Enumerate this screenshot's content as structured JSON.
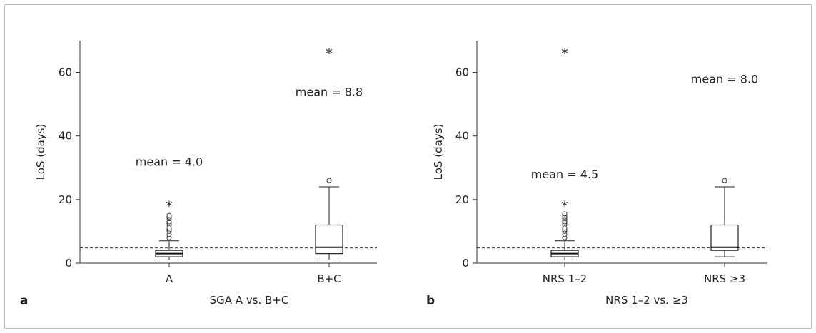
{
  "chart_data": [
    {
      "type": "box",
      "panel_label": "a",
      "xlabel": "SGA A vs. B+C",
      "ylabel": "LoS (days)",
      "ylim": [
        0,
        70
      ],
      "yticks": [
        "0",
        "20",
        "40",
        "60"
      ],
      "yticks_values": [
        0,
        20,
        40,
        60
      ],
      "reference_line": 4.8,
      "categories": [
        "A",
        "B+C"
      ],
      "boxes": [
        {
          "category": "A",
          "whisker_low": 1,
          "q1": 2,
          "median": 3,
          "q3": 4,
          "whisker_high": 7,
          "outliers": [
            8,
            9,
            10,
            10.5,
            11,
            12,
            12.5,
            13,
            14,
            14.5,
            15
          ],
          "extremes": [
            18.5
          ],
          "annotation": "mean = 4.0",
          "annotation_y": 32
        },
        {
          "category": "B+C",
          "whisker_low": 1,
          "q1": 3,
          "median": 5,
          "q3": 12,
          "whisker_high": 24,
          "outliers": [
            26
          ],
          "extremes": [
            66.5
          ],
          "annotation": "mean = 8.8",
          "annotation_y": 54
        }
      ]
    },
    {
      "type": "box",
      "panel_label": "b",
      "xlabel": "NRS 1–2 vs. ≥3",
      "ylabel": "LoS (days)",
      "ylim": [
        0,
        70
      ],
      "yticks": [
        "0",
        "20",
        "40",
        "60"
      ],
      "yticks_values": [
        0,
        20,
        40,
        60
      ],
      "reference_line": 4.8,
      "categories": [
        "NRS 1–2",
        "NRS ≥3"
      ],
      "boxes": [
        {
          "category": "NRS 1–2",
          "whisker_low": 1,
          "q1": 2,
          "median": 3,
          "q3": 4,
          "whisker_high": 7,
          "outliers": [
            8,
            9,
            10,
            10.5,
            11,
            12,
            12.5,
            13,
            13.5,
            14,
            14.5,
            15,
            15.5
          ],
          "extremes": [
            18.5,
            66.5
          ],
          "annotation": "mean = 4.5",
          "annotation_y": 28
        },
        {
          "category": "NRS ≥3",
          "whisker_low": 2,
          "q1": 4,
          "median": 5,
          "q3": 12,
          "whisker_high": 24,
          "outliers": [
            26
          ],
          "extremes": [],
          "annotation": "mean = 8.0",
          "annotation_y": 58
        }
      ]
    }
  ]
}
